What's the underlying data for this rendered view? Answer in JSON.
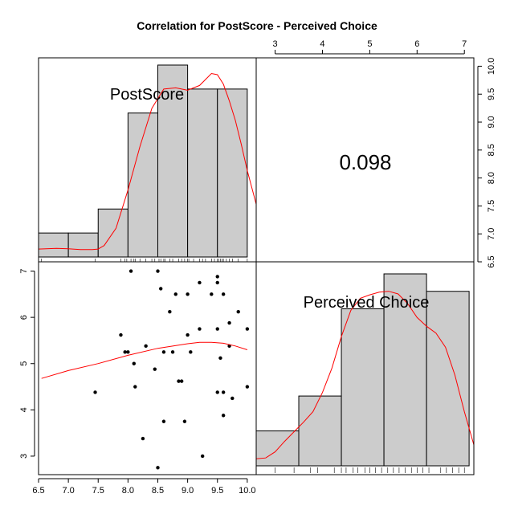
{
  "chart_data": {
    "type": "pairs",
    "title": "Correlation  for PostScore - Perceived Choice",
    "variables": [
      "PostScore",
      "Perceived Choice"
    ],
    "correlation": "0.098",
    "axes": {
      "PostScore": {
        "lim": [
          6.5,
          10.15
        ],
        "ticks": [
          "6.5",
          "7.0",
          "7.5",
          "8.0",
          "8.5",
          "9.0",
          "9.5",
          "10.0"
        ]
      },
      "PerceivedChoice": {
        "lim": [
          2.6,
          7.2
        ],
        "ticks": [
          "3",
          "4",
          "5",
          "6",
          "7"
        ]
      }
    },
    "histograms": [
      {
        "variable": "PostScore",
        "breaks": [
          6.5,
          7.0,
          7.5,
          8.0,
          8.5,
          9.0,
          9.5,
          10.0
        ],
        "counts": [
          1,
          1,
          2,
          6,
          8,
          7,
          7
        ],
        "max_count": 8,
        "density_x": [
          6.5,
          6.8,
          7.0,
          7.2,
          7.4,
          7.5,
          7.6,
          7.8,
          8.0,
          8.2,
          8.4,
          8.6,
          8.8,
          9.0,
          9.2,
          9.4,
          9.5,
          9.6,
          9.7,
          9.8,
          9.9,
          10.0,
          10.15
        ],
        "density_y": [
          0.33,
          0.36,
          0.34,
          0.31,
          0.31,
          0.33,
          0.48,
          1.2,
          2.8,
          4.6,
          6.2,
          7.0,
          7.05,
          6.95,
          7.15,
          7.65,
          7.6,
          7.2,
          6.5,
          5.7,
          4.7,
          3.6,
          2.2
        ]
      },
      {
        "variable": "Perceived Choice",
        "breaks": [
          2.6,
          3.5,
          4.4,
          5.3,
          6.2,
          7.1
        ],
        "counts": [
          2,
          4,
          9,
          11,
          10
        ],
        "max_count": 11,
        "density_x": [
          2.6,
          2.8,
          3.0,
          3.2,
          3.4,
          3.6,
          3.8,
          4.0,
          4.2,
          4.4,
          4.6,
          4.8,
          5.0,
          5.2,
          5.4,
          5.6,
          5.8,
          6.0,
          6.2,
          6.4,
          6.6,
          6.8,
          7.0,
          7.2
        ],
        "density_y": [
          0.4,
          0.45,
          0.8,
          1.4,
          1.95,
          2.5,
          3.1,
          4.2,
          5.6,
          7.4,
          8.9,
          9.6,
          9.8,
          9.95,
          10.0,
          9.85,
          9.3,
          8.5,
          8.0,
          7.6,
          6.8,
          5.2,
          3.1,
          1.2
        ]
      }
    ],
    "rugs": {
      "PostScore": [
        6.55,
        7.45,
        7.88,
        7.95,
        7.98,
        8.05,
        8.1,
        8.12,
        8.2,
        8.3,
        8.4,
        8.45,
        8.52,
        8.55,
        8.6,
        8.62,
        8.7,
        8.75,
        8.85,
        8.9,
        8.95,
        9.0,
        9.02,
        9.1,
        9.2,
        9.25,
        9.3,
        9.4,
        9.45,
        9.5,
        9.52,
        9.55,
        9.58,
        9.6,
        9.65,
        9.7,
        9.75,
        9.85,
        10.0
      ],
      "PerceivedChoice": [
        3.0,
        3.4,
        3.75,
        3.9,
        4.25,
        4.4,
        4.5,
        4.65,
        4.75,
        4.9,
        5.0,
        5.12,
        5.25,
        5.38,
        5.5,
        5.62,
        5.75,
        5.88,
        6.0,
        6.12,
        6.25,
        6.5,
        6.62,
        6.75,
        6.88,
        7.0
      ]
    },
    "scatter": {
      "x_variable": "PostScore",
      "y_variable": "Perceived Choice",
      "points": [
        [
          8.05,
          7.0
        ],
        [
          8.5,
          7.0
        ],
        [
          9.5,
          6.88
        ],
        [
          9.5,
          6.75
        ],
        [
          9.2,
          6.75
        ],
        [
          8.55,
          6.62
        ],
        [
          8.8,
          6.5
        ],
        [
          9.0,
          6.5
        ],
        [
          9.4,
          6.5
        ],
        [
          9.6,
          6.5
        ],
        [
          8.7,
          6.12
        ],
        [
          9.85,
          6.12
        ],
        [
          9.7,
          5.88
        ],
        [
          9.0,
          5.62
        ],
        [
          7.88,
          5.62
        ],
        [
          9.2,
          5.75
        ],
        [
          9.5,
          5.75
        ],
        [
          10.0,
          5.75
        ],
        [
          7.95,
          5.25
        ],
        [
          8.0,
          5.25
        ],
        [
          8.3,
          5.38
        ],
        [
          8.6,
          5.25
        ],
        [
          8.75,
          5.25
        ],
        [
          9.05,
          5.25
        ],
        [
          9.7,
          5.38
        ],
        [
          9.55,
          5.12
        ],
        [
          8.1,
          5.0
        ],
        [
          8.45,
          4.88
        ],
        [
          8.85,
          4.62
        ],
        [
          8.9,
          4.62
        ],
        [
          7.45,
          4.38
        ],
        [
          8.12,
          4.5
        ],
        [
          9.5,
          4.38
        ],
        [
          9.6,
          4.38
        ],
        [
          10.0,
          4.5
        ],
        [
          9.75,
          4.25
        ],
        [
          8.6,
          3.75
        ],
        [
          8.95,
          3.75
        ],
        [
          9.6,
          3.88
        ],
        [
          8.25,
          3.38
        ],
        [
          9.25,
          3.0
        ],
        [
          8.5,
          2.75
        ]
      ],
      "smooth_x": [
        6.55,
        7.0,
        7.5,
        8.0,
        8.5,
        9.0,
        9.2,
        9.4,
        9.6,
        9.8,
        10.0
      ],
      "smooth_y": [
        4.68,
        4.85,
        5.0,
        5.18,
        5.33,
        5.43,
        5.46,
        5.46,
        5.44,
        5.38,
        5.3
      ]
    },
    "colors": {
      "bar_fill": "#cccccc",
      "curve": "#ff0000",
      "points": "#000000",
      "frame": "#000000"
    }
  }
}
